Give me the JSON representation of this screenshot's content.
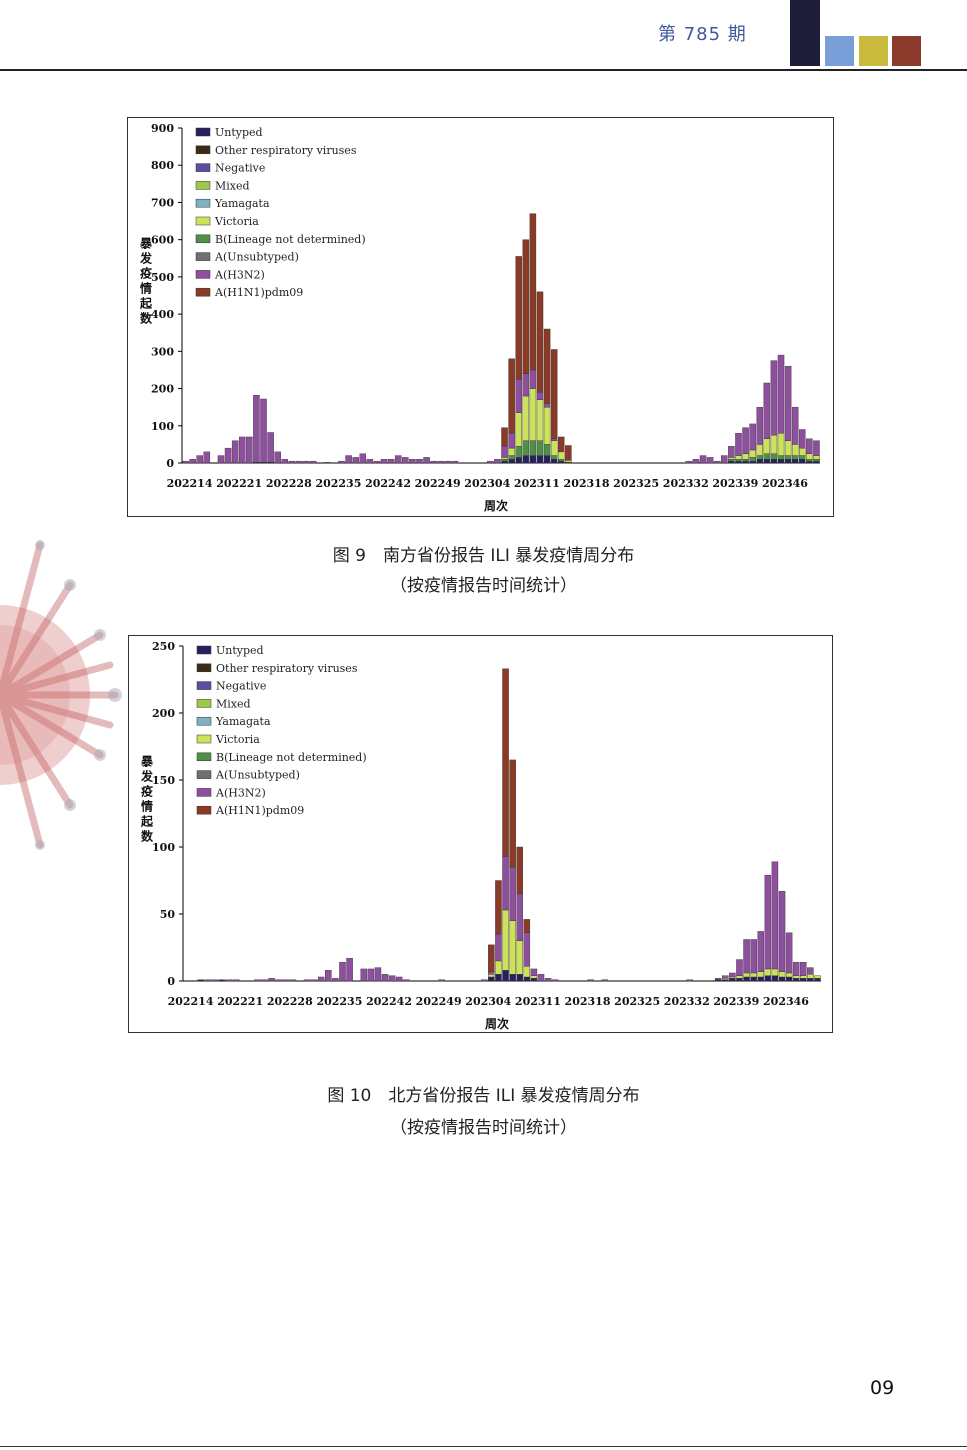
{
  "header": {
    "issue": "第 785 期",
    "color_blocks": [
      "#1e1e3a",
      "#7a9fd8",
      "#c9b93c",
      "#8b3a2c"
    ]
  },
  "page_number": "09",
  "legend_colors": {
    "Untyped": "#26215e",
    "Other respiratory viruses": "#3d2a12",
    "Negative": "#5a50a3",
    "Mixed": "#9ec84a",
    "Yamagata": "#7fb1c1",
    "Victoria": "#cde15a",
    "B(Lineage not determined)": "#4f8f47",
    "A(Unsubtyped)": "#6f6f6f",
    "A(H3N2)": "#8e4f9f",
    "A(H1N1)pdm09": "#8a3a26"
  },
  "chart_data": [
    {
      "type": "bar",
      "stacked": true,
      "caption_title": "图 9　南方省份报告 ILI 暴发疫情周分布",
      "caption_sub": "（按疫情报告时间统计）",
      "ylabel": "暴发疫情起数",
      "xlabel": "周次",
      "ylim": [
        0,
        900
      ],
      "yticks": [
        0,
        100,
        200,
        300,
        400,
        500,
        600,
        700,
        800,
        900
      ],
      "xtick_labels": [
        "202214",
        "202221",
        "202228",
        "202235",
        "202242",
        "202249",
        "202304",
        "202311",
        "202318",
        "202325",
        "202332",
        "202339",
        "202346"
      ],
      "legend": [
        "Untyped",
        "Other respiratory viruses",
        "Negative",
        "Mixed",
        "Yamagata",
        "Victoria",
        "B(Lineage not determined)",
        "A(Unsubtyped)",
        "A(H3N2)",
        "A(H1N1)pdm09"
      ],
      "series": [
        {
          "name": "A(H3N2)",
          "values": [
            5,
            10,
            20,
            30,
            0,
            20,
            40,
            60,
            70,
            70,
            180,
            170,
            80,
            30,
            10,
            5,
            5,
            5,
            5,
            0,
            2,
            0,
            5,
            20,
            15,
            25,
            10,
            5,
            10,
            10,
            20,
            15,
            10,
            10,
            15,
            5,
            5,
            5,
            5,
            0,
            0,
            0,
            0,
            5,
            10,
            30,
            40,
            90,
            60,
            50,
            20,
            10,
            5,
            0,
            0,
            0,
            0,
            0,
            0,
            0,
            0,
            0,
            0,
            0,
            0,
            0,
            0,
            0,
            0,
            0,
            0,
            5,
            10,
            20,
            15,
            5,
            20,
            30,
            60,
            70,
            70,
            100,
            150,
            200,
            210,
            200,
            100,
            50,
            40,
            40
          ]
        },
        {
          "name": "A(H1N1)pdm09",
          "values": [
            0,
            0,
            0,
            0,
            0,
            0,
            0,
            0,
            0,
            0,
            0,
            0,
            0,
            0,
            0,
            0,
            0,
            0,
            0,
            0,
            0,
            0,
            0,
            0,
            0,
            0,
            0,
            0,
            0,
            0,
            0,
            0,
            0,
            0,
            0,
            0,
            0,
            0,
            0,
            0,
            0,
            0,
            0,
            0,
            0,
            50,
            200,
            330,
            360,
            420,
            270,
            200,
            240,
            40,
            40,
            0,
            0,
            0,
            0,
            0,
            0,
            0,
            0,
            0,
            0,
            0,
            0,
            0,
            0,
            0,
            0,
            0,
            0,
            0,
            0,
            0,
            0,
            0,
            0,
            0,
            0,
            0,
            0,
            0,
            0,
            0,
            0,
            0,
            0,
            0
          ]
        },
        {
          "name": "Victoria",
          "values": [
            0,
            0,
            0,
            0,
            0,
            0,
            0,
            0,
            0,
            0,
            0,
            0,
            0,
            0,
            0,
            0,
            0,
            0,
            0,
            0,
            0,
            0,
            0,
            0,
            0,
            0,
            0,
            0,
            0,
            0,
            0,
            0,
            0,
            0,
            0,
            0,
            0,
            0,
            0,
            0,
            0,
            0,
            0,
            0,
            0,
            5,
            20,
            90,
            120,
            140,
            110,
            100,
            40,
            20,
            5,
            0,
            0,
            0,
            0,
            0,
            0,
            0,
            0,
            0,
            0,
            0,
            0,
            0,
            0,
            0,
            0,
            0,
            0,
            0,
            0,
            0,
            0,
            5,
            10,
            15,
            20,
            30,
            40,
            50,
            60,
            40,
            30,
            20,
            15,
            10
          ]
        },
        {
          "name": "B(Lineage not determined)",
          "values": [
            0,
            0,
            0,
            0,
            0,
            0,
            0,
            0,
            0,
            0,
            0,
            0,
            0,
            0,
            0,
            0,
            0,
            0,
            0,
            0,
            0,
            0,
            0,
            0,
            0,
            0,
            0,
            0,
            0,
            0,
            0,
            0,
            0,
            0,
            0,
            0,
            0,
            0,
            0,
            0,
            0,
            0,
            0,
            0,
            0,
            5,
            10,
            30,
            40,
            40,
            40,
            30,
            10,
            5,
            0,
            0,
            0,
            0,
            0,
            0,
            0,
            0,
            0,
            0,
            0,
            0,
            0,
            0,
            0,
            0,
            0,
            0,
            0,
            0,
            0,
            0,
            0,
            5,
            5,
            5,
            10,
            10,
            15,
            15,
            10,
            10,
            10,
            10,
            5,
            5
          ]
        },
        {
          "name": "Untyped",
          "values": [
            0,
            0,
            0,
            0,
            0,
            0,
            0,
            0,
            0,
            0,
            2,
            2,
            2,
            0,
            0,
            0,
            0,
            0,
            0,
            0,
            0,
            0,
            0,
            0,
            0,
            0,
            0,
            0,
            0,
            0,
            0,
            0,
            0,
            0,
            0,
            0,
            0,
            0,
            0,
            0,
            0,
            0,
            0,
            0,
            0,
            5,
            10,
            15,
            20,
            20,
            20,
            20,
            10,
            5,
            2,
            0,
            0,
            0,
            0,
            0,
            0,
            0,
            0,
            0,
            0,
            0,
            0,
            0,
            0,
            0,
            0,
            0,
            0,
            0,
            0,
            0,
            0,
            5,
            5,
            5,
            5,
            10,
            10,
            10,
            10,
            10,
            10,
            10,
            5,
            5
          ]
        }
      ]
    },
    {
      "type": "bar",
      "stacked": true,
      "caption_title": "图 10　北方省份报告 ILI 暴发疫情周分布",
      "caption_sub": "（按疫情报告时间统计）",
      "ylabel": "暴发疫情起数",
      "xlabel": "周次",
      "ylim": [
        0,
        250
      ],
      "yticks": [
        0,
        50,
        100,
        150,
        200,
        250
      ],
      "xtick_labels": [
        "202214",
        "202221",
        "202228",
        "202235",
        "202242",
        "202249",
        "202304",
        "202311",
        "202318",
        "202325",
        "202332",
        "202339",
        "202346"
      ],
      "legend": [
        "Untyped",
        "Other respiratory viruses",
        "Negative",
        "Mixed",
        "Yamagata",
        "Victoria",
        "B(Lineage not determined)",
        "A(Unsubtyped)",
        "A(H3N2)",
        "A(H1N1)pdm09"
      ],
      "series": [
        {
          "name": "A(H3N2)",
          "values": [
            0,
            0,
            0,
            1,
            1,
            0,
            1,
            1,
            0,
            0,
            1,
            1,
            2,
            1,
            1,
            1,
            0,
            1,
            1,
            3,
            8,
            2,
            14,
            17,
            0,
            9,
            9,
            10,
            5,
            4,
            3,
            1,
            0,
            0,
            0,
            0,
            1,
            0,
            0,
            0,
            0,
            0,
            1,
            2,
            20,
            40,
            40,
            35,
            25,
            5,
            5,
            2,
            1,
            0,
            0,
            0,
            0,
            1,
            0,
            1,
            0,
            0,
            0,
            0,
            0,
            0,
            0,
            0,
            0,
            0,
            0,
            1,
            0,
            0,
            0,
            1,
            2,
            3,
            12,
            25,
            25,
            30,
            70,
            80,
            60,
            30,
            10,
            10,
            5,
            0
          ]
        },
        {
          "name": "A(H1N1)pdm09",
          "values": [
            0,
            0,
            0,
            0,
            0,
            0,
            0,
            0,
            0,
            0,
            0,
            0,
            0,
            0,
            0,
            0,
            0,
            0,
            0,
            0,
            0,
            0,
            0,
            0,
            0,
            0,
            0,
            0,
            0,
            0,
            0,
            0,
            0,
            0,
            0,
            0,
            0,
            0,
            0,
            0,
            0,
            0,
            0,
            20,
            40,
            140,
            80,
            35,
            10,
            0,
            0,
            0,
            0,
            0,
            0,
            0,
            0,
            0,
            0,
            0,
            0,
            0,
            0,
            0,
            0,
            0,
            0,
            0,
            0,
            0,
            0,
            0,
            0,
            0,
            0,
            0,
            0,
            0,
            0,
            0,
            0,
            0,
            0,
            0,
            0,
            0,
            0,
            0,
            0,
            0
          ]
        },
        {
          "name": "Victoria",
          "values": [
            0,
            0,
            0,
            0,
            0,
            0,
            0,
            0,
            0,
            0,
            0,
            0,
            0,
            0,
            0,
            0,
            0,
            0,
            0,
            0,
            0,
            0,
            0,
            0,
            0,
            0,
            0,
            0,
            0,
            0,
            0,
            0,
            0,
            0,
            0,
            0,
            0,
            0,
            0,
            0,
            0,
            0,
            0,
            2,
            10,
            45,
            40,
            25,
            8,
            2,
            0,
            0,
            0,
            0,
            0,
            0,
            0,
            0,
            0,
            0,
            0,
            0,
            0,
            0,
            0,
            0,
            0,
            0,
            0,
            0,
            0,
            0,
            0,
            0,
            0,
            0,
            1,
            1,
            2,
            3,
            3,
            4,
            5,
            5,
            4,
            3,
            2,
            2,
            3,
            2
          ]
        },
        {
          "name": "Untyped",
          "values": [
            0,
            0,
            1,
            0,
            0,
            1,
            0,
            0,
            0,
            0,
            0,
            0,
            0,
            0,
            0,
            0,
            0,
            0,
            0,
            0,
            0,
            0,
            0,
            0,
            0,
            0,
            0,
            0,
            0,
            0,
            0,
            0,
            0,
            0,
            0,
            0,
            0,
            0,
            0,
            0,
            0,
            0,
            0,
            3,
            5,
            8,
            5,
            5,
            3,
            2,
            0,
            0,
            0,
            0,
            0,
            0,
            0,
            0,
            0,
            0,
            0,
            0,
            0,
            0,
            0,
            0,
            0,
            0,
            0,
            0,
            0,
            0,
            0,
            0,
            0,
            1,
            1,
            2,
            2,
            3,
            3,
            3,
            4,
            4,
            3,
            3,
            2,
            2,
            2,
            2
          ]
        }
      ]
    }
  ]
}
